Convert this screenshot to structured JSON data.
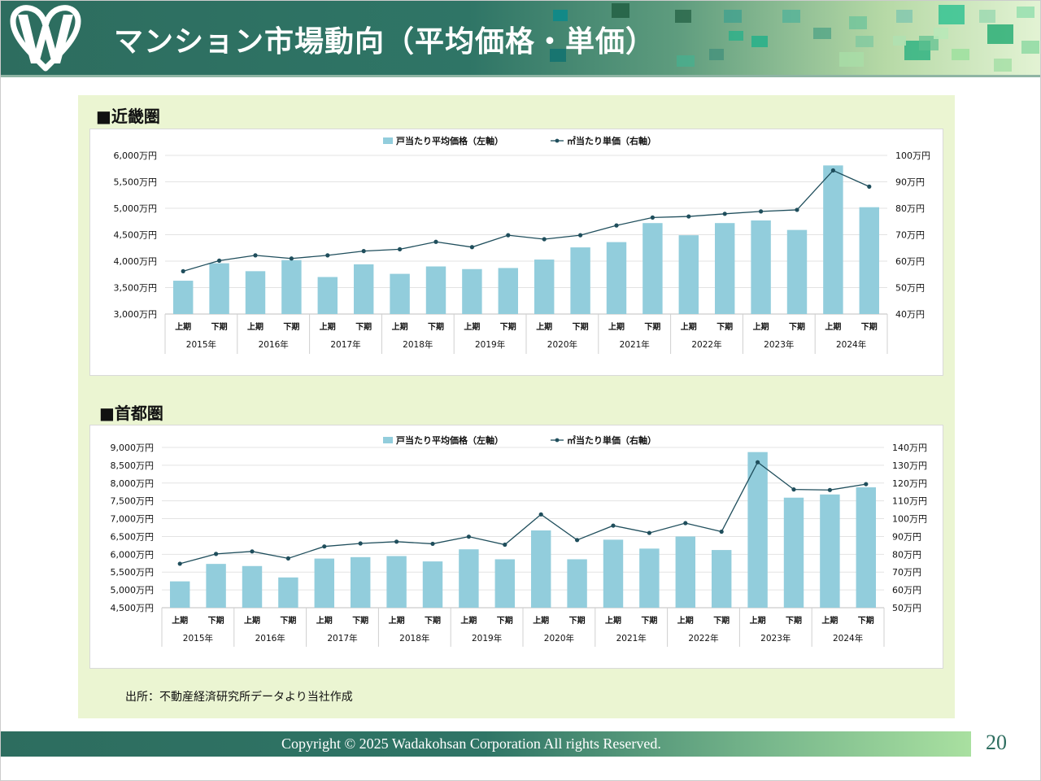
{
  "header": {
    "title": "マンション市場動向（平均価格・単価）"
  },
  "sections": [
    {
      "title": "■近畿圏"
    },
    {
      "title": "■首都圏"
    }
  ],
  "source": "出所：不動産経済研究所データより当社作成",
  "footer": {
    "copyright": "Copyright © 2025  Wadakohsan Corporation All rights Reserved.",
    "page_number": "20"
  },
  "colors": {
    "bar": "#92cddc",
    "line": "#1f4e5c",
    "header": "#2d6d5f",
    "panel": "#ebf5d2"
  },
  "chart_data": [
    {
      "type": "bar",
      "title": "",
      "legend": [
        "戸当たり平均価格（左軸）",
        "㎡当たり単価（右軸）"
      ],
      "legend_position": "top",
      "years": [
        "2015年",
        "2016年",
        "2017年",
        "2018年",
        "2019年",
        "2020年",
        "2021年",
        "2022年",
        "2023年",
        "2024年"
      ],
      "halves": [
        "上期",
        "下期"
      ],
      "series": [
        {
          "name": "戸当たり平均価格（左軸）",
          "axis": "left",
          "type": "bar",
          "values": [
            3630,
            3960,
            3810,
            4020,
            3700,
            3940,
            3760,
            3900,
            3850,
            3870,
            4030,
            4260,
            4360,
            4720,
            4490,
            4720,
            4770,
            4590,
            5810,
            5020
          ]
        },
        {
          "name": "㎡当たり単価（右軸）",
          "axis": "right",
          "type": "line",
          "values": [
            56.2,
            60.2,
            62.2,
            61.0,
            62.2,
            63.8,
            64.5,
            67.3,
            65.3,
            69.8,
            68.3,
            69.8,
            73.5,
            76.5,
            76.9,
            77.9,
            78.8,
            79.4,
            94.3,
            88.2
          ]
        }
      ],
      "ylim_left": [
        3000,
        6000
      ],
      "ystep_left": 500,
      "ylim_right": [
        40,
        100
      ],
      "ystep_right": 10,
      "yticks_left": [
        "3,000万円",
        "3,500万円",
        "4,000万円",
        "4,500万円",
        "5,000万円",
        "5,500万円",
        "6,000万円"
      ],
      "yticks_right": [
        "40万円",
        "50万円",
        "60万円",
        "70万円",
        "80万円",
        "90万円",
        "100万円"
      ]
    },
    {
      "type": "bar",
      "title": "",
      "legend": [
        "戸当たり平均価格（左軸）",
        "㎡当たり単価（右軸）"
      ],
      "legend_position": "top",
      "years": [
        "2015年",
        "2016年",
        "2017年",
        "2018年",
        "2019年",
        "2020年",
        "2021年",
        "2022年",
        "2023年",
        "2024年"
      ],
      "halves": [
        "上期",
        "下期"
      ],
      "series": [
        {
          "name": "戸当たり平均価格（左軸）",
          "axis": "left",
          "type": "bar",
          "values": [
            5240,
            5730,
            5670,
            5350,
            5880,
            5920,
            5950,
            5800,
            6140,
            5860,
            6670,
            5860,
            6410,
            6160,
            6500,
            6120,
            8870,
            7590,
            7680,
            7880
          ]
        },
        {
          "name": "㎡当たり単価（右軸）",
          "axis": "right",
          "type": "line",
          "values": [
            74.7,
            80.2,
            81.6,
            77.7,
            84.4,
            86.1,
            87.1,
            85.9,
            89.9,
            85.4,
            102.4,
            88.0,
            96.1,
            92.0,
            97.5,
            92.7,
            131.7,
            116.4,
            116.1,
            119.4
          ]
        }
      ],
      "ylim_left": [
        4500,
        9000
      ],
      "ystep_left": 500,
      "ylim_right": [
        50,
        140
      ],
      "ystep_right": 10,
      "yticks_left": [
        "4,500万円",
        "5,000万円",
        "5,500万円",
        "6,000万円",
        "6,500万円",
        "7,000万円",
        "7,500万円",
        "8,000万円",
        "8,500万円",
        "9,000万円"
      ],
      "yticks_right": [
        "50万円",
        "60万円",
        "70万円",
        "80万円",
        "90万円",
        "100万円",
        "110万円",
        "120万円",
        "130万円",
        "140万円"
      ]
    }
  ]
}
